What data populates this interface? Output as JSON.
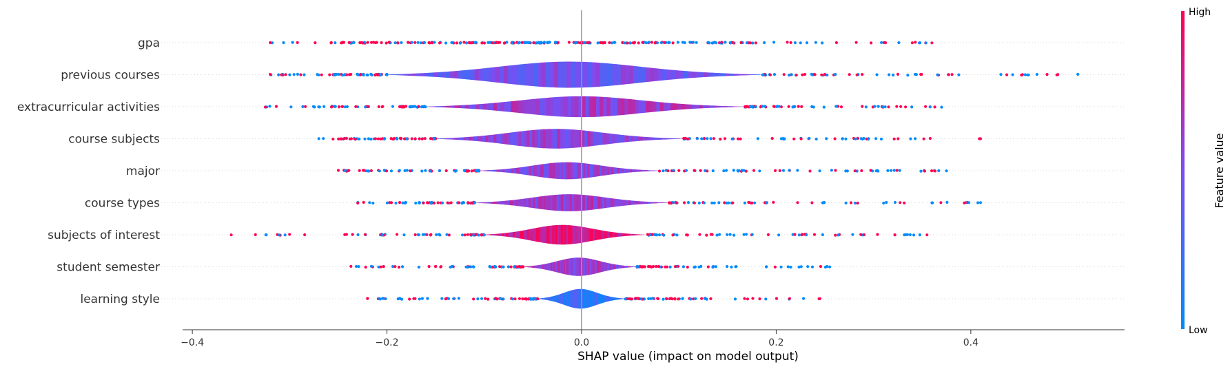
{
  "chart_data": {
    "type": "violin-scatter",
    "xlabel": "SHAP value (impact on model output)",
    "xlim": [
      -0.41,
      0.558
    ],
    "x_ticks": [
      -0.4,
      -0.2,
      0.0,
      0.2,
      0.4
    ],
    "x_tick_labels": [
      "−0.4",
      "−0.2",
      "0.0",
      "0.2",
      "0.4"
    ],
    "zero_line": 0,
    "features": [
      {
        "name": "gpa",
        "min": -0.32,
        "max": 0.36,
        "core": [
          -0.25,
          0.18
        ],
        "violin_halfwidth": 0.0,
        "center_color": 0.5
      },
      {
        "name": "previous courses",
        "min": -0.32,
        "max": 0.51,
        "core": [
          -0.2,
          0.186
        ],
        "violin_halfwidth": 1.0,
        "center_color": 0.45
      },
      {
        "name": "extracurricular activities",
        "min": -0.325,
        "max": 0.37,
        "core": [
          -0.16,
          0.168
        ],
        "violin_halfwidth": 0.8,
        "center_color": 0.6
      },
      {
        "name": "course subjects",
        "min": -0.27,
        "max": 0.41,
        "core": [
          -0.15,
          0.105
        ],
        "violin_halfwidth": 0.75,
        "center_color": 0.55
      },
      {
        "name": "major",
        "min": -0.25,
        "max": 0.375,
        "core": [
          -0.105,
          0.08
        ],
        "violin_halfwidth": 0.65,
        "center_color": 0.55
      },
      {
        "name": "course types",
        "min": -0.23,
        "max": 0.41,
        "core": [
          -0.11,
          0.09
        ],
        "violin_halfwidth": 0.65,
        "center_color": 0.6
      },
      {
        "name": "subjects of interest",
        "min": -0.36,
        "max": 0.355,
        "core": [
          -0.1,
          0.065
        ],
        "violin_halfwidth": 0.75,
        "center_color": 0.85
      },
      {
        "name": "student semester",
        "min": -0.237,
        "max": 0.255,
        "core": [
          -0.06,
          0.057
        ],
        "violin_halfwidth": 0.7,
        "center_color": 0.6
      },
      {
        "name": "learning style",
        "min": -0.22,
        "max": 0.245,
        "core": [
          -0.045,
          0.045
        ],
        "violin_halfwidth": 0.75,
        "center_color": 0.2
      }
    ],
    "colorbar": {
      "title": "Feature value",
      "high_label": "High",
      "low_label": "Low",
      "low_color": "#008bfb",
      "mid_color": "#7c4df1",
      "high_color": "#ff0052"
    },
    "grid": "dotted horizontal per feature",
    "legend": "colorbar right"
  }
}
